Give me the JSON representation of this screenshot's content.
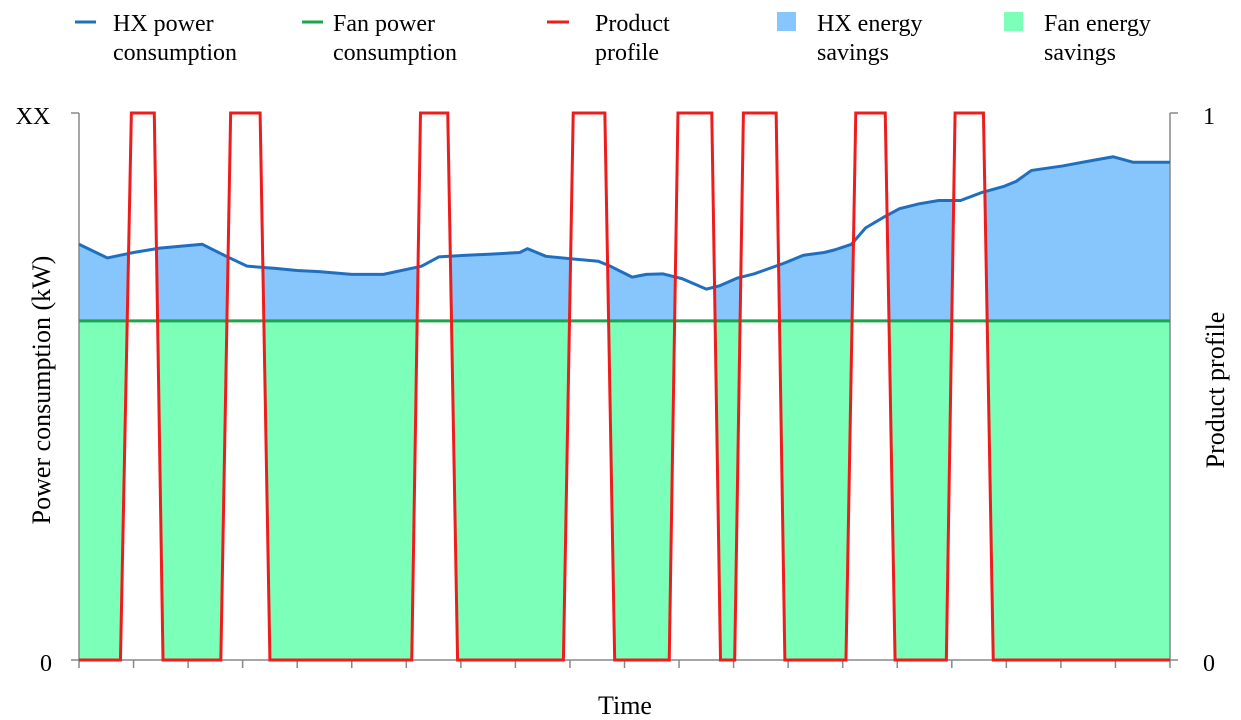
{
  "chart_data": {
    "type": "area",
    "xlabel": "Time",
    "ylabel": "Power consumption (kW)",
    "ylabel_right": "Product profile",
    "y_ticks": [
      "0",
      "XX"
    ],
    "y_right_ticks": [
      "0",
      "1"
    ],
    "ylim": [
      0,
      1
    ],
    "y_right_lim": [
      0,
      1
    ],
    "xlim": [
      0,
      100
    ],
    "legend_position": "top",
    "legend": [
      {
        "label": "HX power consumption",
        "kind": "line",
        "color": "#1f6fc0"
      },
      {
        "label": "Fan power consumption",
        "kind": "line",
        "color": "#1aa54a"
      },
      {
        "label": "Product profile",
        "kind": "line",
        "color": "#ee1c1c"
      },
      {
        "label": "HX energy savings",
        "kind": "area",
        "color": "#87c6fc"
      },
      {
        "label": "Fan energy savings",
        "kind": "area",
        "color": "#7cffb8"
      }
    ],
    "legend_lines": [
      [
        "HX power",
        "consumption"
      ],
      [
        "Fan power",
        "consumption"
      ],
      [
        "Product",
        "profile"
      ],
      [
        "HX energy",
        "savings"
      ],
      [
        "Fan energy",
        "savings"
      ]
    ],
    "series": [
      {
        "name": "HX power consumption",
        "color": "#1f6fc0",
        "x": [
          0,
          2.6,
          5,
          7.4,
          11.3,
          13.5,
          15.4,
          18,
          20,
          22,
          25,
          27.9,
          31.4,
          33,
          35.5,
          37.8,
          40.4,
          41.1,
          42.8,
          45.3,
          47.6,
          48.7,
          50.7,
          52,
          53.5,
          55.3,
          57.5,
          58.7,
          60.3,
          61.9,
          64.7,
          66.4,
          68.3,
          69.3,
          70.8,
          72.1,
          73.8,
          75.2,
          77,
          78.8,
          80.8,
          82.8,
          84.8,
          85.9,
          87.3,
          90.1,
          92.8,
          94.8,
          96.6,
          100
        ],
        "y": [
          0.76,
          0.735,
          0.745,
          0.753,
          0.76,
          0.738,
          0.72,
          0.716,
          0.712,
          0.71,
          0.705,
          0.705,
          0.72,
          0.737,
          0.74,
          0.742,
          0.745,
          0.752,
          0.738,
          0.733,
          0.729,
          0.72,
          0.7,
          0.705,
          0.706,
          0.697,
          0.678,
          0.684,
          0.698,
          0.706,
          0.726,
          0.74,
          0.745,
          0.75,
          0.76,
          0.79,
          0.81,
          0.825,
          0.834,
          0.84,
          0.84,
          0.855,
          0.866,
          0.875,
          0.895,
          0.903,
          0.913,
          0.92,
          0.91,
          0.91
        ]
      },
      {
        "name": "Fan power consumption",
        "color": "#1aa54a",
        "x": [
          0,
          100
        ],
        "y": [
          0.62,
          0.62
        ]
      },
      {
        "name": "Product profile",
        "color": "#ee1c1c",
        "axis": "right",
        "x": [
          0,
          3.8,
          4.8,
          6.9,
          7.7,
          13,
          13.9,
          16.6,
          17.5,
          30.5,
          31.3,
          33.8,
          34.7,
          44.4,
          45.3,
          48.2,
          49.1,
          54.1,
          54.9,
          58,
          58.8,
          60.1,
          60.9,
          63.9,
          64.7,
          70.3,
          71.2,
          73.9,
          74.8,
          79.5,
          80.3,
          82.9,
          83.8,
          100
        ],
        "y": [
          0,
          0,
          1,
          1,
          0,
          0,
          1,
          1,
          0,
          0,
          1,
          1,
          0,
          0,
          1,
          1,
          0,
          0,
          1,
          1,
          0,
          0,
          1,
          1,
          0,
          0,
          1,
          1,
          0,
          0,
          1,
          1,
          0,
          0
        ]
      },
      {
        "name": "HX energy savings",
        "color": "#87c6fc",
        "fill_between": [
          "Fan power consumption",
          "HX power consumption"
        ]
      },
      {
        "name": "Fan energy savings",
        "color": "#7cffb8",
        "fill_between": [
          "0",
          "Fan power consumption"
        ]
      }
    ],
    "x_tick_count": 21,
    "grid": false
  }
}
